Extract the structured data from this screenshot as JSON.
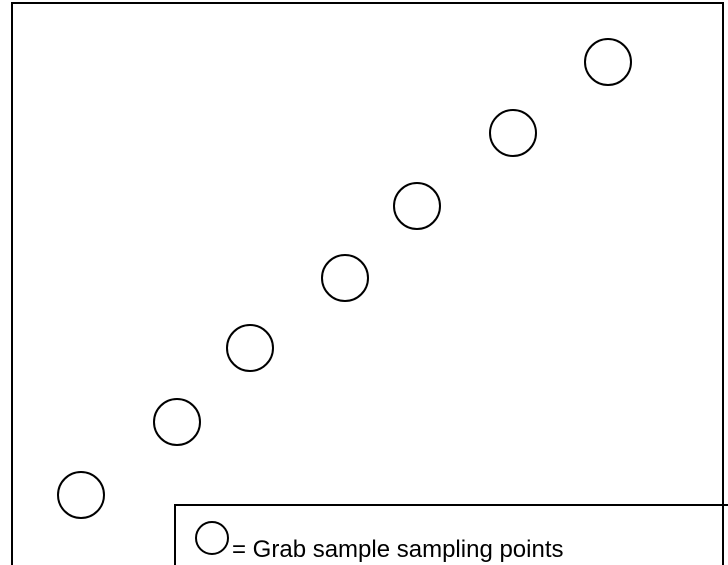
{
  "diagram": {
    "sampling_point_count": 7,
    "stroke_color": "#000000",
    "background_color": "#ffffff",
    "marker_icon": "circle-outline-icon"
  },
  "legend": {
    "icon": "circle-outline-icon",
    "label": "= Grab sample sampling points"
  }
}
